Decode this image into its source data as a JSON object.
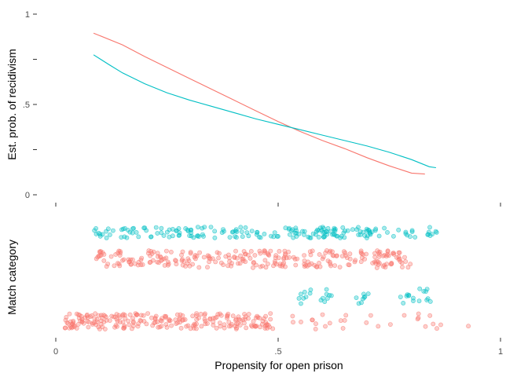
{
  "chart_data": [
    {
      "type": "line",
      "ylabel": "Est. prob. of recidivism",
      "xlabel": "",
      "xlim": [
        0,
        1
      ],
      "ylim": [
        0,
        1
      ],
      "x_ticks": [
        0,
        0.5,
        1
      ],
      "y_ticks": [
        {
          "value": 0,
          "label": "0"
        },
        {
          "value": 0.25,
          "label": ""
        },
        {
          "value": 0.5,
          "label": ".5"
        },
        {
          "value": 0.75,
          "label": ""
        },
        {
          "value": 1,
          "label": "1"
        }
      ],
      "grid": false,
      "series": [
        {
          "color": "#F8766D",
          "points": [
            [
              0.085,
              0.895
            ],
            [
              0.15,
              0.83
            ],
            [
              0.2,
              0.765
            ],
            [
              0.25,
              0.705
            ],
            [
              0.3,
              0.645
            ],
            [
              0.35,
              0.585
            ],
            [
              0.4,
              0.525
            ],
            [
              0.45,
              0.465
            ],
            [
              0.5,
              0.405
            ],
            [
              0.55,
              0.35
            ],
            [
              0.6,
              0.3
            ],
            [
              0.65,
              0.255
            ],
            [
              0.7,
              0.205
            ],
            [
              0.75,
              0.16
            ],
            [
              0.8,
              0.12
            ],
            [
              0.83,
              0.115
            ]
          ]
        },
        {
          "color": "#00BFC4",
          "points": [
            [
              0.085,
              0.775
            ],
            [
              0.12,
              0.72
            ],
            [
              0.15,
              0.675
            ],
            [
              0.2,
              0.615
            ],
            [
              0.25,
              0.565
            ],
            [
              0.3,
              0.525
            ],
            [
              0.35,
              0.49
            ],
            [
              0.4,
              0.455
            ],
            [
              0.45,
              0.42
            ],
            [
              0.5,
              0.39
            ],
            [
              0.55,
              0.36
            ],
            [
              0.6,
              0.33
            ],
            [
              0.65,
              0.3
            ],
            [
              0.7,
              0.27
            ],
            [
              0.75,
              0.235
            ],
            [
              0.8,
              0.195
            ],
            [
              0.84,
              0.155
            ],
            [
              0.855,
              0.15
            ]
          ]
        }
      ]
    },
    {
      "type": "scatter",
      "ylabel": "Match category",
      "xlabel": "Propensity for open prison",
      "xlim": [
        0,
        1
      ],
      "x_ticks": [
        {
          "value": 0,
          "label": "0"
        },
        {
          "value": 0.5,
          "label": ".5"
        },
        {
          "value": 1,
          "label": "1"
        }
      ],
      "y_tick_labels": [],
      "grid": false,
      "bands": [
        {
          "category_level": 4,
          "color": "#00BFC4",
          "x_min": 0.08,
          "x_max": 0.86,
          "count": 190
        },
        {
          "category_level": 3,
          "color": "#F8766D",
          "x_min": 0.09,
          "x_max": 0.8,
          "count": 270
        },
        {
          "category_level": 2,
          "color": "#00BFC4",
          "x_min": 0.55,
          "x_max": 0.9,
          "count": 40
        },
        {
          "category_level": 1,
          "color": "#F8766D",
          "x_min": 0.02,
          "x_max": 0.93,
          "count": 260
        }
      ]
    }
  ]
}
